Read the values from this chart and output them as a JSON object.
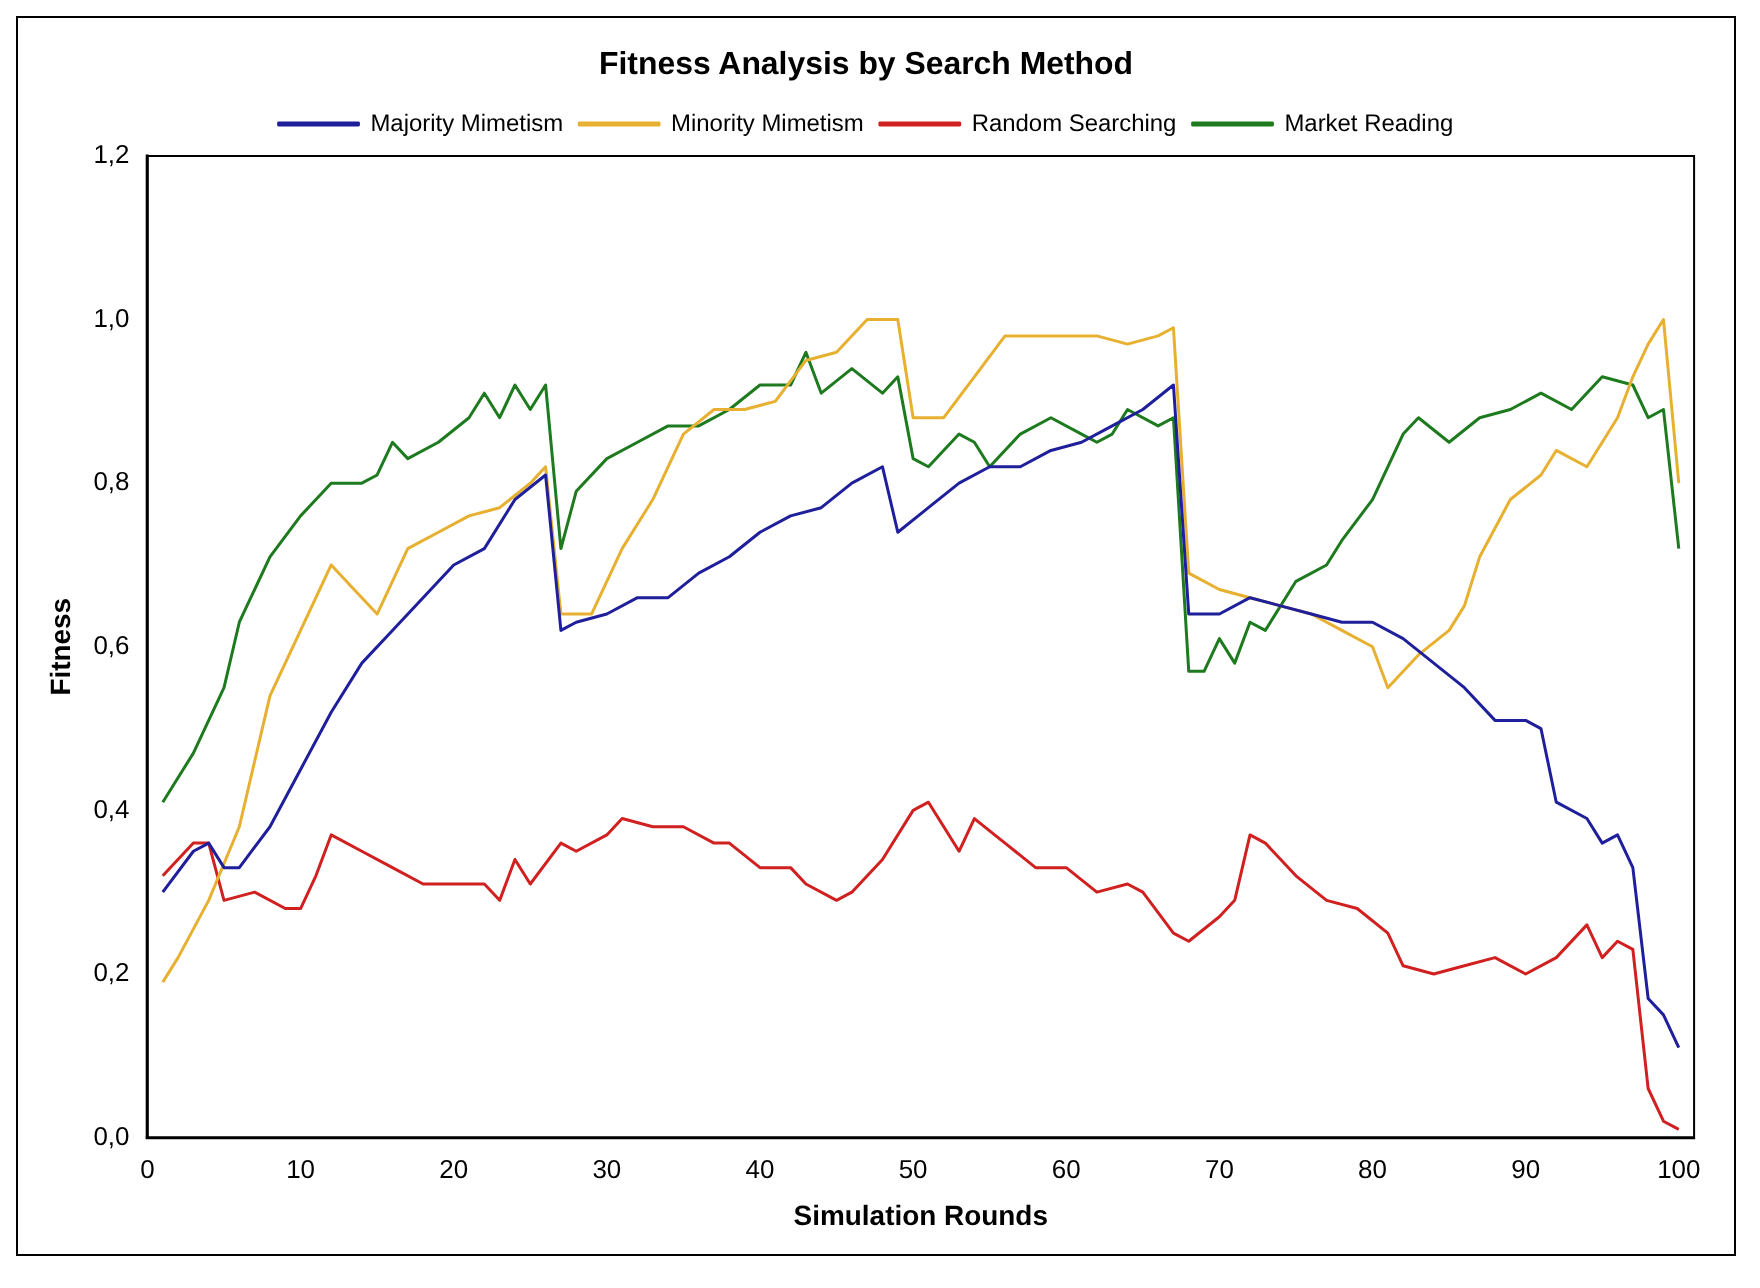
{
  "chart_data": {
    "type": "line",
    "title": "Fitness Analysis by Search Method",
    "xlabel": "Simulation Rounds",
    "ylabel": "Fitness",
    "xlim": [
      0,
      101
    ],
    "xticks": [
      0,
      10,
      20,
      30,
      40,
      50,
      60,
      70,
      80,
      90,
      100
    ],
    "ylim": [
      0,
      1.2
    ],
    "yticks": [
      {
        "value": 0,
        "label": "0,0"
      },
      {
        "value": 0.2,
        "label": "0,2"
      },
      {
        "value": 0.4,
        "label": "0,4"
      },
      {
        "value": 0.6,
        "label": "0,6"
      },
      {
        "value": 0.8,
        "label": "0,8"
      },
      {
        "value": 1.0,
        "label": "1,0"
      },
      {
        "value": 1.2,
        "label": "1,2"
      }
    ],
    "grid": false,
    "legend": "top",
    "marker": "none",
    "line_style": "solid",
    "series": [
      {
        "name": "Majority Mimetism",
        "color": "#1f1f9c",
        "x": [
          1,
          3,
          4,
          5,
          6,
          8,
          10,
          12,
          14,
          16,
          18,
          20,
          22,
          24,
          26,
          27,
          28,
          30,
          32,
          34,
          36,
          38,
          40,
          42,
          44,
          46,
          48,
          49,
          51,
          53,
          55,
          57,
          59,
          61,
          63,
          65,
          67,
          68,
          70,
          72,
          74,
          76,
          78,
          80,
          82,
          84,
          86,
          88,
          90,
          91,
          92,
          94,
          95,
          96,
          97,
          98,
          99,
          100
        ],
        "values": [
          0.3,
          0.35,
          0.36,
          0.33,
          0.33,
          0.38,
          0.45,
          0.52,
          0.58,
          0.62,
          0.66,
          0.7,
          0.72,
          0.78,
          0.81,
          0.62,
          0.63,
          0.64,
          0.66,
          0.66,
          0.69,
          0.71,
          0.74,
          0.76,
          0.77,
          0.8,
          0.82,
          0.74,
          0.77,
          0.8,
          0.82,
          0.82,
          0.84,
          0.85,
          0.87,
          0.89,
          0.92,
          0.64,
          0.64,
          0.66,
          0.65,
          0.64,
          0.63,
          0.63,
          0.61,
          0.58,
          0.55,
          0.51,
          0.51,
          0.5,
          0.41,
          0.39,
          0.36,
          0.37,
          0.33,
          0.17,
          0.15,
          0.11
        ]
      },
      {
        "name": "Minority Mimetism",
        "color": "#e8b030",
        "x": [
          1,
          2,
          4,
          6,
          8,
          10,
          12,
          14,
          15,
          17,
          19,
          21,
          23,
          25,
          26,
          27,
          29,
          31,
          33,
          35,
          37,
          39,
          41,
          43,
          45,
          47,
          49,
          50,
          52,
          54,
          56,
          58,
          60,
          62,
          64,
          66,
          67,
          68,
          70,
          72,
          74,
          76,
          78,
          80,
          81,
          83,
          85,
          86,
          87,
          89,
          91,
          92,
          94,
          96,
          97,
          98,
          99,
          100
        ],
        "values": [
          0.19,
          0.22,
          0.29,
          0.38,
          0.54,
          0.62,
          0.7,
          0.66,
          0.64,
          0.72,
          0.74,
          0.76,
          0.77,
          0.8,
          0.82,
          0.64,
          0.64,
          0.72,
          0.78,
          0.86,
          0.89,
          0.89,
          0.9,
          0.95,
          0.96,
          1.0,
          1.0,
          0.88,
          0.88,
          0.93,
          0.98,
          0.98,
          0.98,
          0.98,
          0.97,
          0.98,
          0.99,
          0.69,
          0.67,
          0.66,
          0.65,
          0.64,
          0.62,
          0.6,
          0.55,
          0.59,
          0.62,
          0.65,
          0.71,
          0.78,
          0.81,
          0.84,
          0.82,
          0.88,
          0.93,
          0.97,
          1.0,
          0.8
        ]
      },
      {
        "name": "Random Searching",
        "color": "#d02020",
        "x": [
          1,
          3,
          4,
          5,
          7,
          9,
          10,
          11,
          12,
          14,
          16,
          18,
          20,
          22,
          23,
          24,
          25,
          27,
          28,
          30,
          31,
          33,
          35,
          37,
          38,
          40,
          42,
          43,
          45,
          46,
          48,
          50,
          51,
          52,
          53,
          54,
          56,
          58,
          60,
          62,
          64,
          65,
          67,
          68,
          70,
          71,
          72,
          73,
          75,
          77,
          79,
          81,
          82,
          84,
          86,
          88,
          90,
          92,
          94,
          95,
          96,
          97,
          98,
          99,
          100
        ],
        "values": [
          0.32,
          0.36,
          0.36,
          0.29,
          0.3,
          0.28,
          0.28,
          0.32,
          0.37,
          0.35,
          0.33,
          0.31,
          0.31,
          0.31,
          0.29,
          0.34,
          0.31,
          0.36,
          0.35,
          0.37,
          0.39,
          0.38,
          0.38,
          0.36,
          0.36,
          0.33,
          0.33,
          0.31,
          0.29,
          0.3,
          0.34,
          0.4,
          0.41,
          0.38,
          0.35,
          0.39,
          0.36,
          0.33,
          0.33,
          0.3,
          0.31,
          0.3,
          0.25,
          0.24,
          0.27,
          0.29,
          0.37,
          0.36,
          0.32,
          0.29,
          0.28,
          0.25,
          0.21,
          0.2,
          0.21,
          0.22,
          0.2,
          0.22,
          0.26,
          0.22,
          0.24,
          0.23,
          0.06,
          0.02,
          0.01
        ]
      },
      {
        "name": "Market Reading",
        "color": "#1e7a1e",
        "x": [
          1,
          3,
          5,
          6,
          8,
          10,
          12,
          14,
          15,
          16,
          17,
          19,
          21,
          22,
          23,
          24,
          25,
          26,
          27,
          28,
          30,
          32,
          34,
          36,
          38,
          40,
          42,
          43,
          44,
          46,
          48,
          49,
          50,
          51,
          53,
          54,
          55,
          57,
          59,
          61,
          62,
          63,
          64,
          66,
          67,
          68,
          69,
          70,
          71,
          72,
          73,
          75,
          77,
          78,
          80,
          82,
          83,
          85,
          87,
          89,
          91,
          93,
          95,
          97,
          98,
          99,
          100
        ],
        "values": [
          0.41,
          0.47,
          0.55,
          0.63,
          0.71,
          0.76,
          0.8,
          0.8,
          0.81,
          0.85,
          0.83,
          0.85,
          0.88,
          0.91,
          0.88,
          0.92,
          0.89,
          0.92,
          0.72,
          0.79,
          0.83,
          0.85,
          0.87,
          0.87,
          0.89,
          0.92,
          0.92,
          0.96,
          0.91,
          0.94,
          0.91,
          0.93,
          0.83,
          0.82,
          0.86,
          0.85,
          0.82,
          0.86,
          0.88,
          0.86,
          0.85,
          0.86,
          0.89,
          0.87,
          0.88,
          0.57,
          0.57,
          0.61,
          0.58,
          0.63,
          0.62,
          0.68,
          0.7,
          0.73,
          0.78,
          0.86,
          0.88,
          0.85,
          0.88,
          0.89,
          0.91,
          0.89,
          0.93,
          0.92,
          0.88,
          0.89,
          0.72
        ]
      }
    ]
  }
}
